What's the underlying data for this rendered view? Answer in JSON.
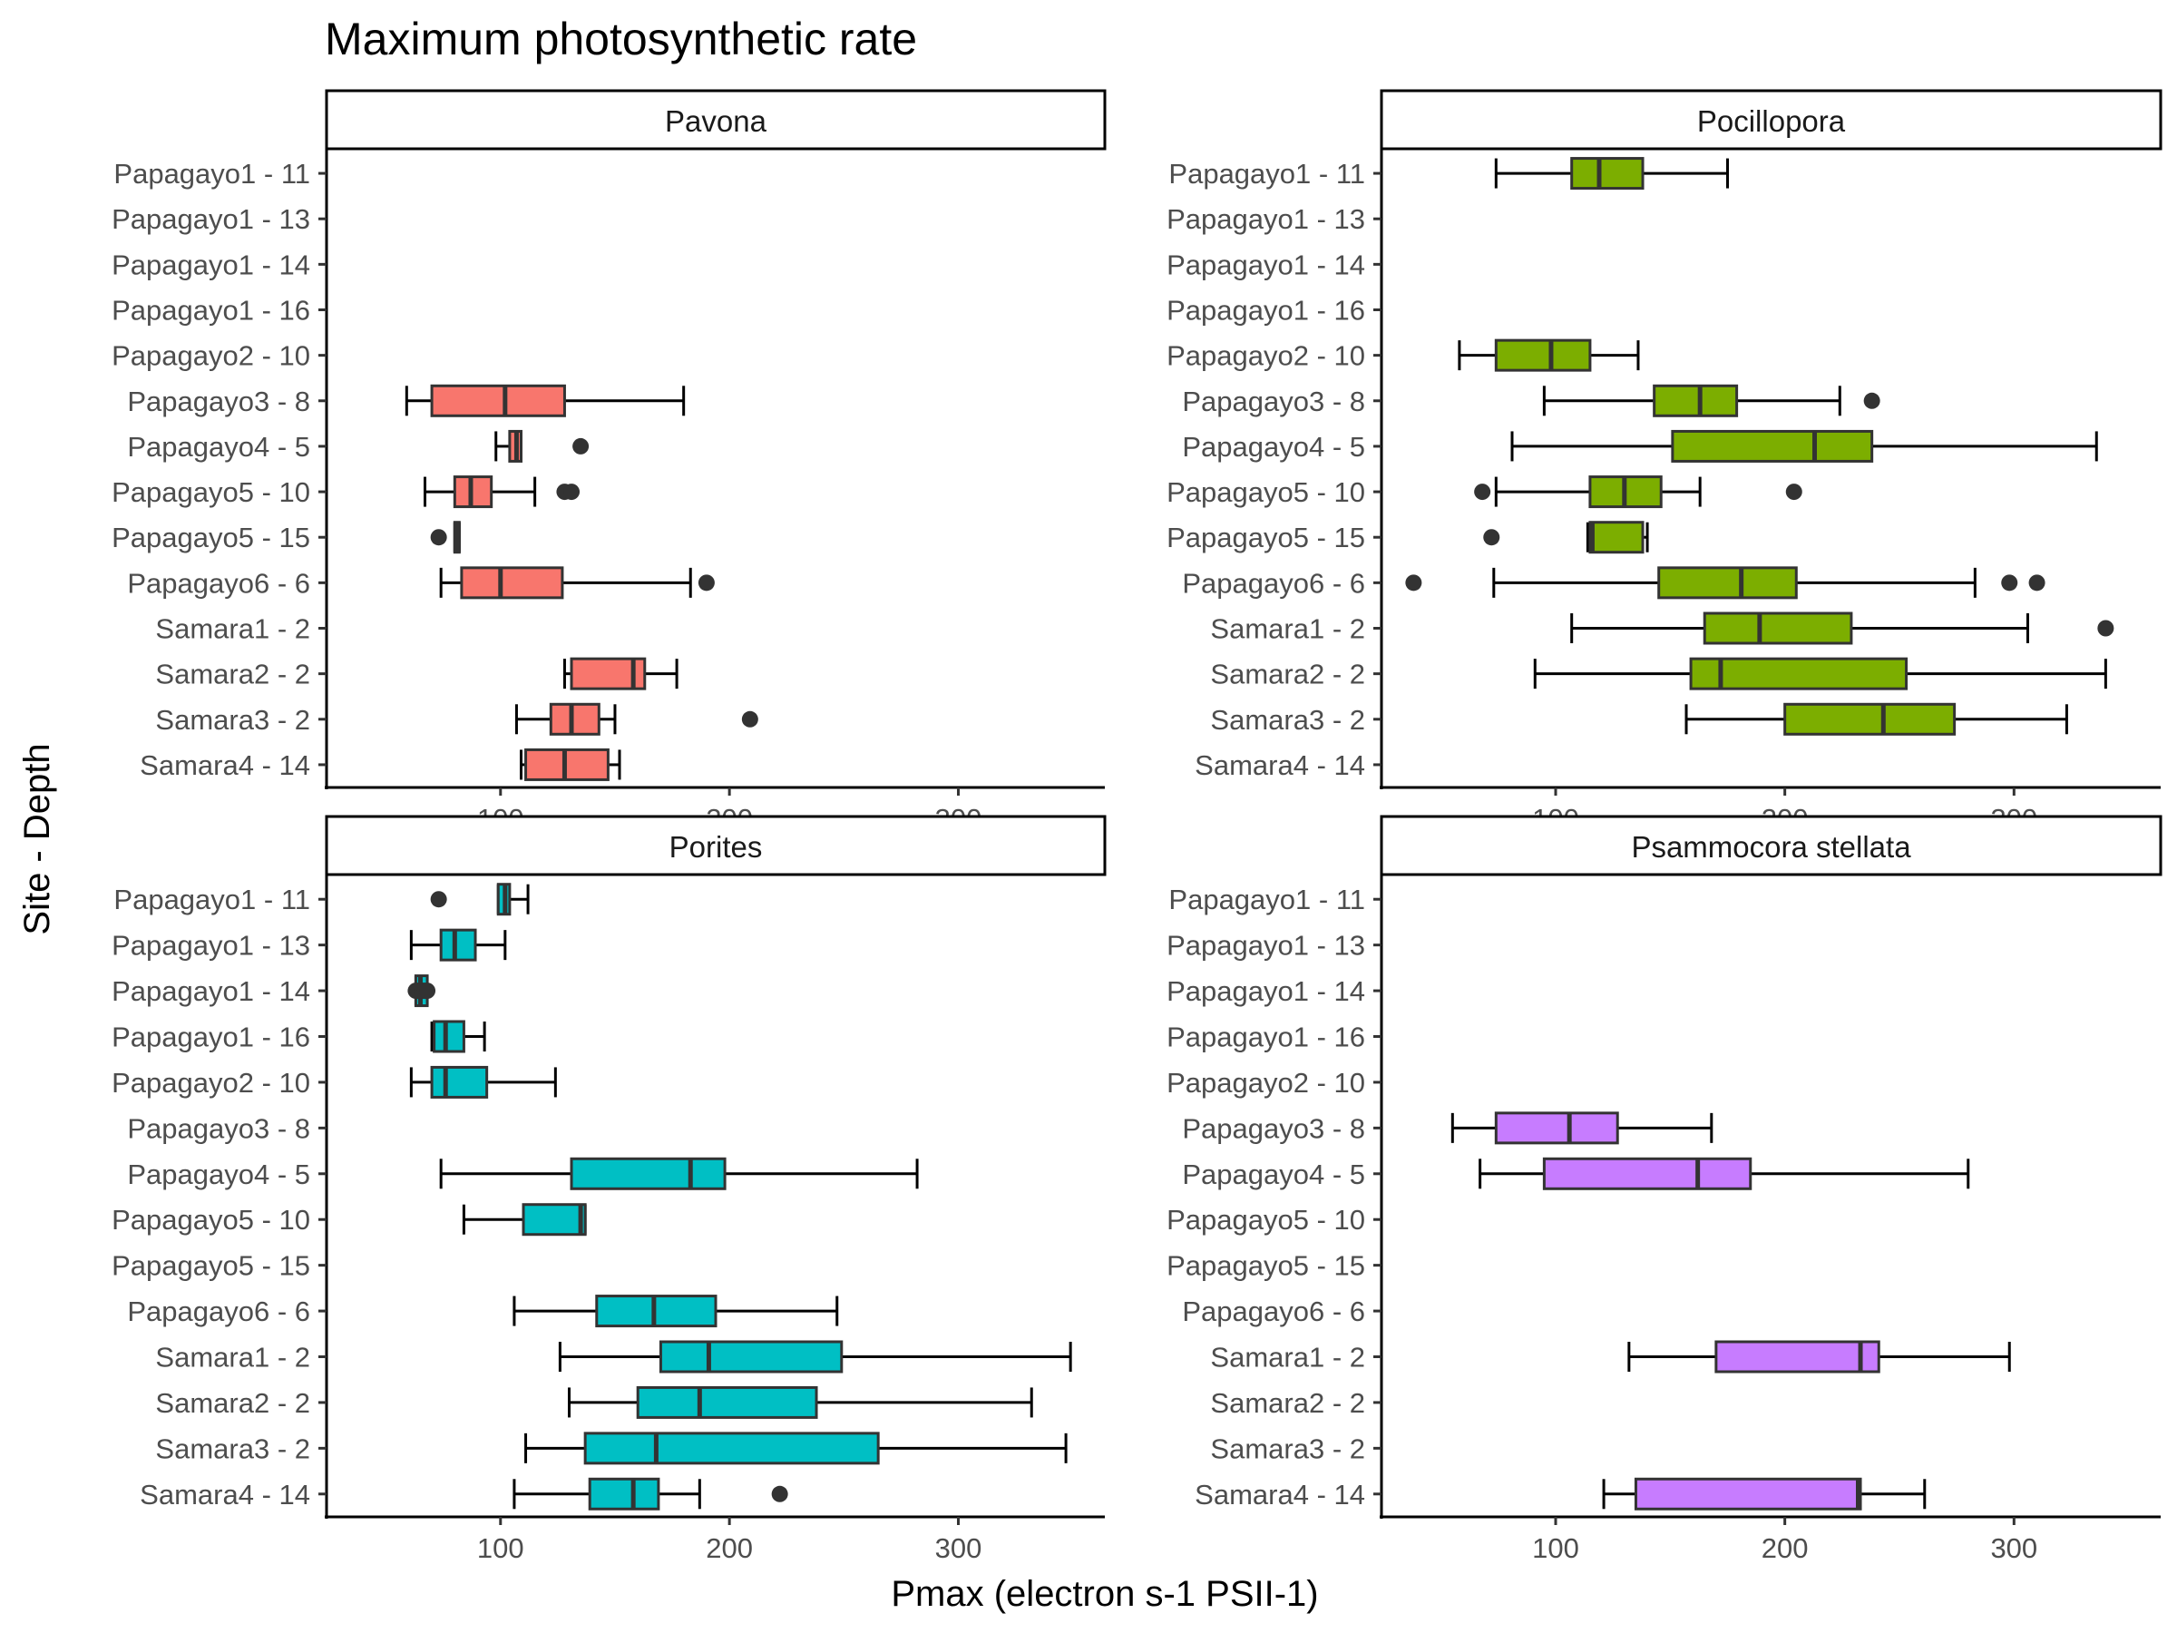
{
  "chart_data": {
    "type": "boxplot",
    "title": "Maximum photosynthetic rate",
    "xlabel": "Pmax (electron s-1 PSII-1)",
    "ylabel": "Site - Depth",
    "xlim": [
      24,
      364
    ],
    "xticks": [
      100,
      200,
      300
    ],
    "grid": false,
    "legend": "none",
    "categories": [
      "Papagayo1 - 11",
      "Papagayo1 - 13",
      "Papagayo1 - 14",
      "Papagayo1 - 16",
      "Papagayo2 - 10",
      "Papagayo3 - 8",
      "Papagayo4 - 5",
      "Papagayo5 - 10",
      "Papagayo5 - 15",
      "Papagayo6 - 6",
      "Samara1 - 2",
      "Samara2 - 2",
      "Samara3 - 2",
      "Samara4 - 14"
    ],
    "facets": [
      {
        "name": "Pavona",
        "color": "#F8766D",
        "boxes": [
          {
            "category": "Papagayo3 - 8",
            "whisker_low": 59,
            "q1": 70,
            "median": 102,
            "q3": 128,
            "whisker_high": 180,
            "outliers": []
          },
          {
            "category": "Papagayo4 - 5",
            "whisker_low": 98,
            "q1": 104,
            "median": 107,
            "q3": 109,
            "whisker_high": 109,
            "outliers": [
              135
            ]
          },
          {
            "category": "Papagayo5 - 10",
            "whisker_low": 67,
            "q1": 80,
            "median": 87,
            "q3": 96,
            "whisker_high": 115,
            "outliers": [
              128,
              131
            ]
          },
          {
            "category": "Papagayo5 - 15",
            "whisker_low": 80,
            "q1": 80,
            "median": 81,
            "q3": 82,
            "whisker_high": 82,
            "outliers": [
              73
            ]
          },
          {
            "category": "Papagayo6 - 6",
            "whisker_low": 74,
            "q1": 83,
            "median": 100,
            "q3": 127,
            "whisker_high": 183,
            "outliers": [
              190
            ]
          },
          {
            "category": "Samara2 - 2",
            "whisker_low": 128,
            "q1": 131,
            "median": 158,
            "q3": 163,
            "whisker_high": 177,
            "outliers": []
          },
          {
            "category": "Samara3 - 2",
            "whisker_low": 107,
            "q1": 122,
            "median": 131,
            "q3": 143,
            "whisker_high": 150,
            "outliers": [
              209
            ]
          },
          {
            "category": "Samara4 - 14",
            "whisker_low": 109,
            "q1": 111,
            "median": 128,
            "q3": 147,
            "whisker_high": 152,
            "outliers": []
          }
        ]
      },
      {
        "name": "Pocillopora",
        "color": "#7CAE00",
        "boxes": [
          {
            "category": "Papagayo1 - 11",
            "whisker_low": 74,
            "q1": 107,
            "median": 119,
            "q3": 138,
            "whisker_high": 175,
            "outliers": []
          },
          {
            "category": "Papagayo2 - 10",
            "whisker_low": 58,
            "q1": 74,
            "median": 98,
            "q3": 115,
            "whisker_high": 136,
            "outliers": []
          },
          {
            "category": "Papagayo3 - 8",
            "whisker_low": 95,
            "q1": 143,
            "median": 163,
            "q3": 179,
            "whisker_high": 224,
            "outliers": [
              238
            ]
          },
          {
            "category": "Papagayo4 - 5",
            "whisker_low": 81,
            "q1": 151,
            "median": 213,
            "q3": 238,
            "whisker_high": 336,
            "outliers": []
          },
          {
            "category": "Papagayo5 - 10",
            "whisker_low": 74,
            "q1": 115,
            "median": 130,
            "q3": 146,
            "whisker_high": 163,
            "outliers": [
              68,
              204
            ]
          },
          {
            "category": "Papagayo5 - 15",
            "whisker_low": 114,
            "q1": 115,
            "median": 116,
            "q3": 138,
            "whisker_high": 140,
            "outliers": [
              72
            ]
          },
          {
            "category": "Papagayo6 - 6",
            "whisker_low": 73,
            "q1": 145,
            "median": 181,
            "q3": 205,
            "whisker_high": 283,
            "outliers": [
              38,
              298,
              310
            ]
          },
          {
            "category": "Samara1 - 2",
            "whisker_low": 107,
            "q1": 165,
            "median": 189,
            "q3": 229,
            "whisker_high": 306,
            "outliers": [
              340
            ]
          },
          {
            "category": "Samara2 - 2",
            "whisker_low": 91,
            "q1": 159,
            "median": 172,
            "q3": 253,
            "whisker_high": 340,
            "outliers": []
          },
          {
            "category": "Samara3 - 2",
            "whisker_low": 157,
            "q1": 200,
            "median": 243,
            "q3": 274,
            "whisker_high": 323,
            "outliers": []
          }
        ]
      },
      {
        "name": "Porites",
        "color": "#00BFC4",
        "boxes": [
          {
            "category": "Papagayo1 - 11",
            "whisker_low": 99,
            "q1": 99,
            "median": 102,
            "q3": 104,
            "whisker_high": 112,
            "outliers": [
              73
            ]
          },
          {
            "category": "Papagayo1 - 13",
            "whisker_low": 61,
            "q1": 74,
            "median": 80,
            "q3": 89,
            "whisker_high": 102,
            "outliers": []
          },
          {
            "category": "Papagayo1 - 14",
            "whisker_low": 63,
            "q1": 63,
            "median": 65,
            "q3": 68,
            "whisker_high": 68,
            "outliers": [
              63,
              64,
              66,
              67,
              68
            ]
          },
          {
            "category": "Papagayo1 - 16",
            "whisker_low": 70,
            "q1": 71,
            "median": 76,
            "q3": 84,
            "whisker_high": 93,
            "outliers": []
          },
          {
            "category": "Papagayo2 - 10",
            "whisker_low": 61,
            "q1": 70,
            "median": 76,
            "q3": 94,
            "whisker_high": 124,
            "outliers": []
          },
          {
            "category": "Papagayo4 - 5",
            "whisker_low": 74,
            "q1": 131,
            "median": 183,
            "q3": 198,
            "whisker_high": 282,
            "outliers": []
          },
          {
            "category": "Papagayo5 - 10",
            "whisker_low": 84,
            "q1": 110,
            "median": 135,
            "q3": 137,
            "whisker_high": 137,
            "outliers": []
          },
          {
            "category": "Papagayo6 - 6",
            "whisker_low": 106,
            "q1": 142,
            "median": 167,
            "q3": 194,
            "whisker_high": 247,
            "outliers": []
          },
          {
            "category": "Samara1 - 2",
            "whisker_low": 126,
            "q1": 170,
            "median": 191,
            "q3": 249,
            "whisker_high": 349,
            "outliers": []
          },
          {
            "category": "Samara2 - 2",
            "whisker_low": 130,
            "q1": 160,
            "median": 187,
            "q3": 238,
            "whisker_high": 332,
            "outliers": []
          },
          {
            "category": "Samara3 - 2",
            "whisker_low": 111,
            "q1": 137,
            "median": 168,
            "q3": 265,
            "whisker_high": 347,
            "outliers": []
          },
          {
            "category": "Samara4 - 14",
            "whisker_low": 106,
            "q1": 139,
            "median": 158,
            "q3": 169,
            "whisker_high": 187,
            "outliers": [
              222
            ]
          }
        ]
      },
      {
        "name": "Psammocora stellata",
        "color": "#C77CFF",
        "boxes": [
          {
            "category": "Papagayo3 - 8",
            "whisker_low": 55,
            "q1": 74,
            "median": 106,
            "q3": 127,
            "whisker_high": 168,
            "outliers": []
          },
          {
            "category": "Papagayo4 - 5",
            "whisker_low": 67,
            "q1": 95,
            "median": 162,
            "q3": 185,
            "whisker_high": 280,
            "outliers": []
          },
          {
            "category": "Samara1 - 2",
            "whisker_low": 132,
            "q1": 170,
            "median": 233,
            "q3": 241,
            "whisker_high": 298,
            "outliers": []
          },
          {
            "category": "Samara4 - 14",
            "whisker_low": 121,
            "q1": 135,
            "median": 232,
            "q3": 233,
            "whisker_high": 261,
            "outliers": []
          }
        ]
      }
    ]
  }
}
